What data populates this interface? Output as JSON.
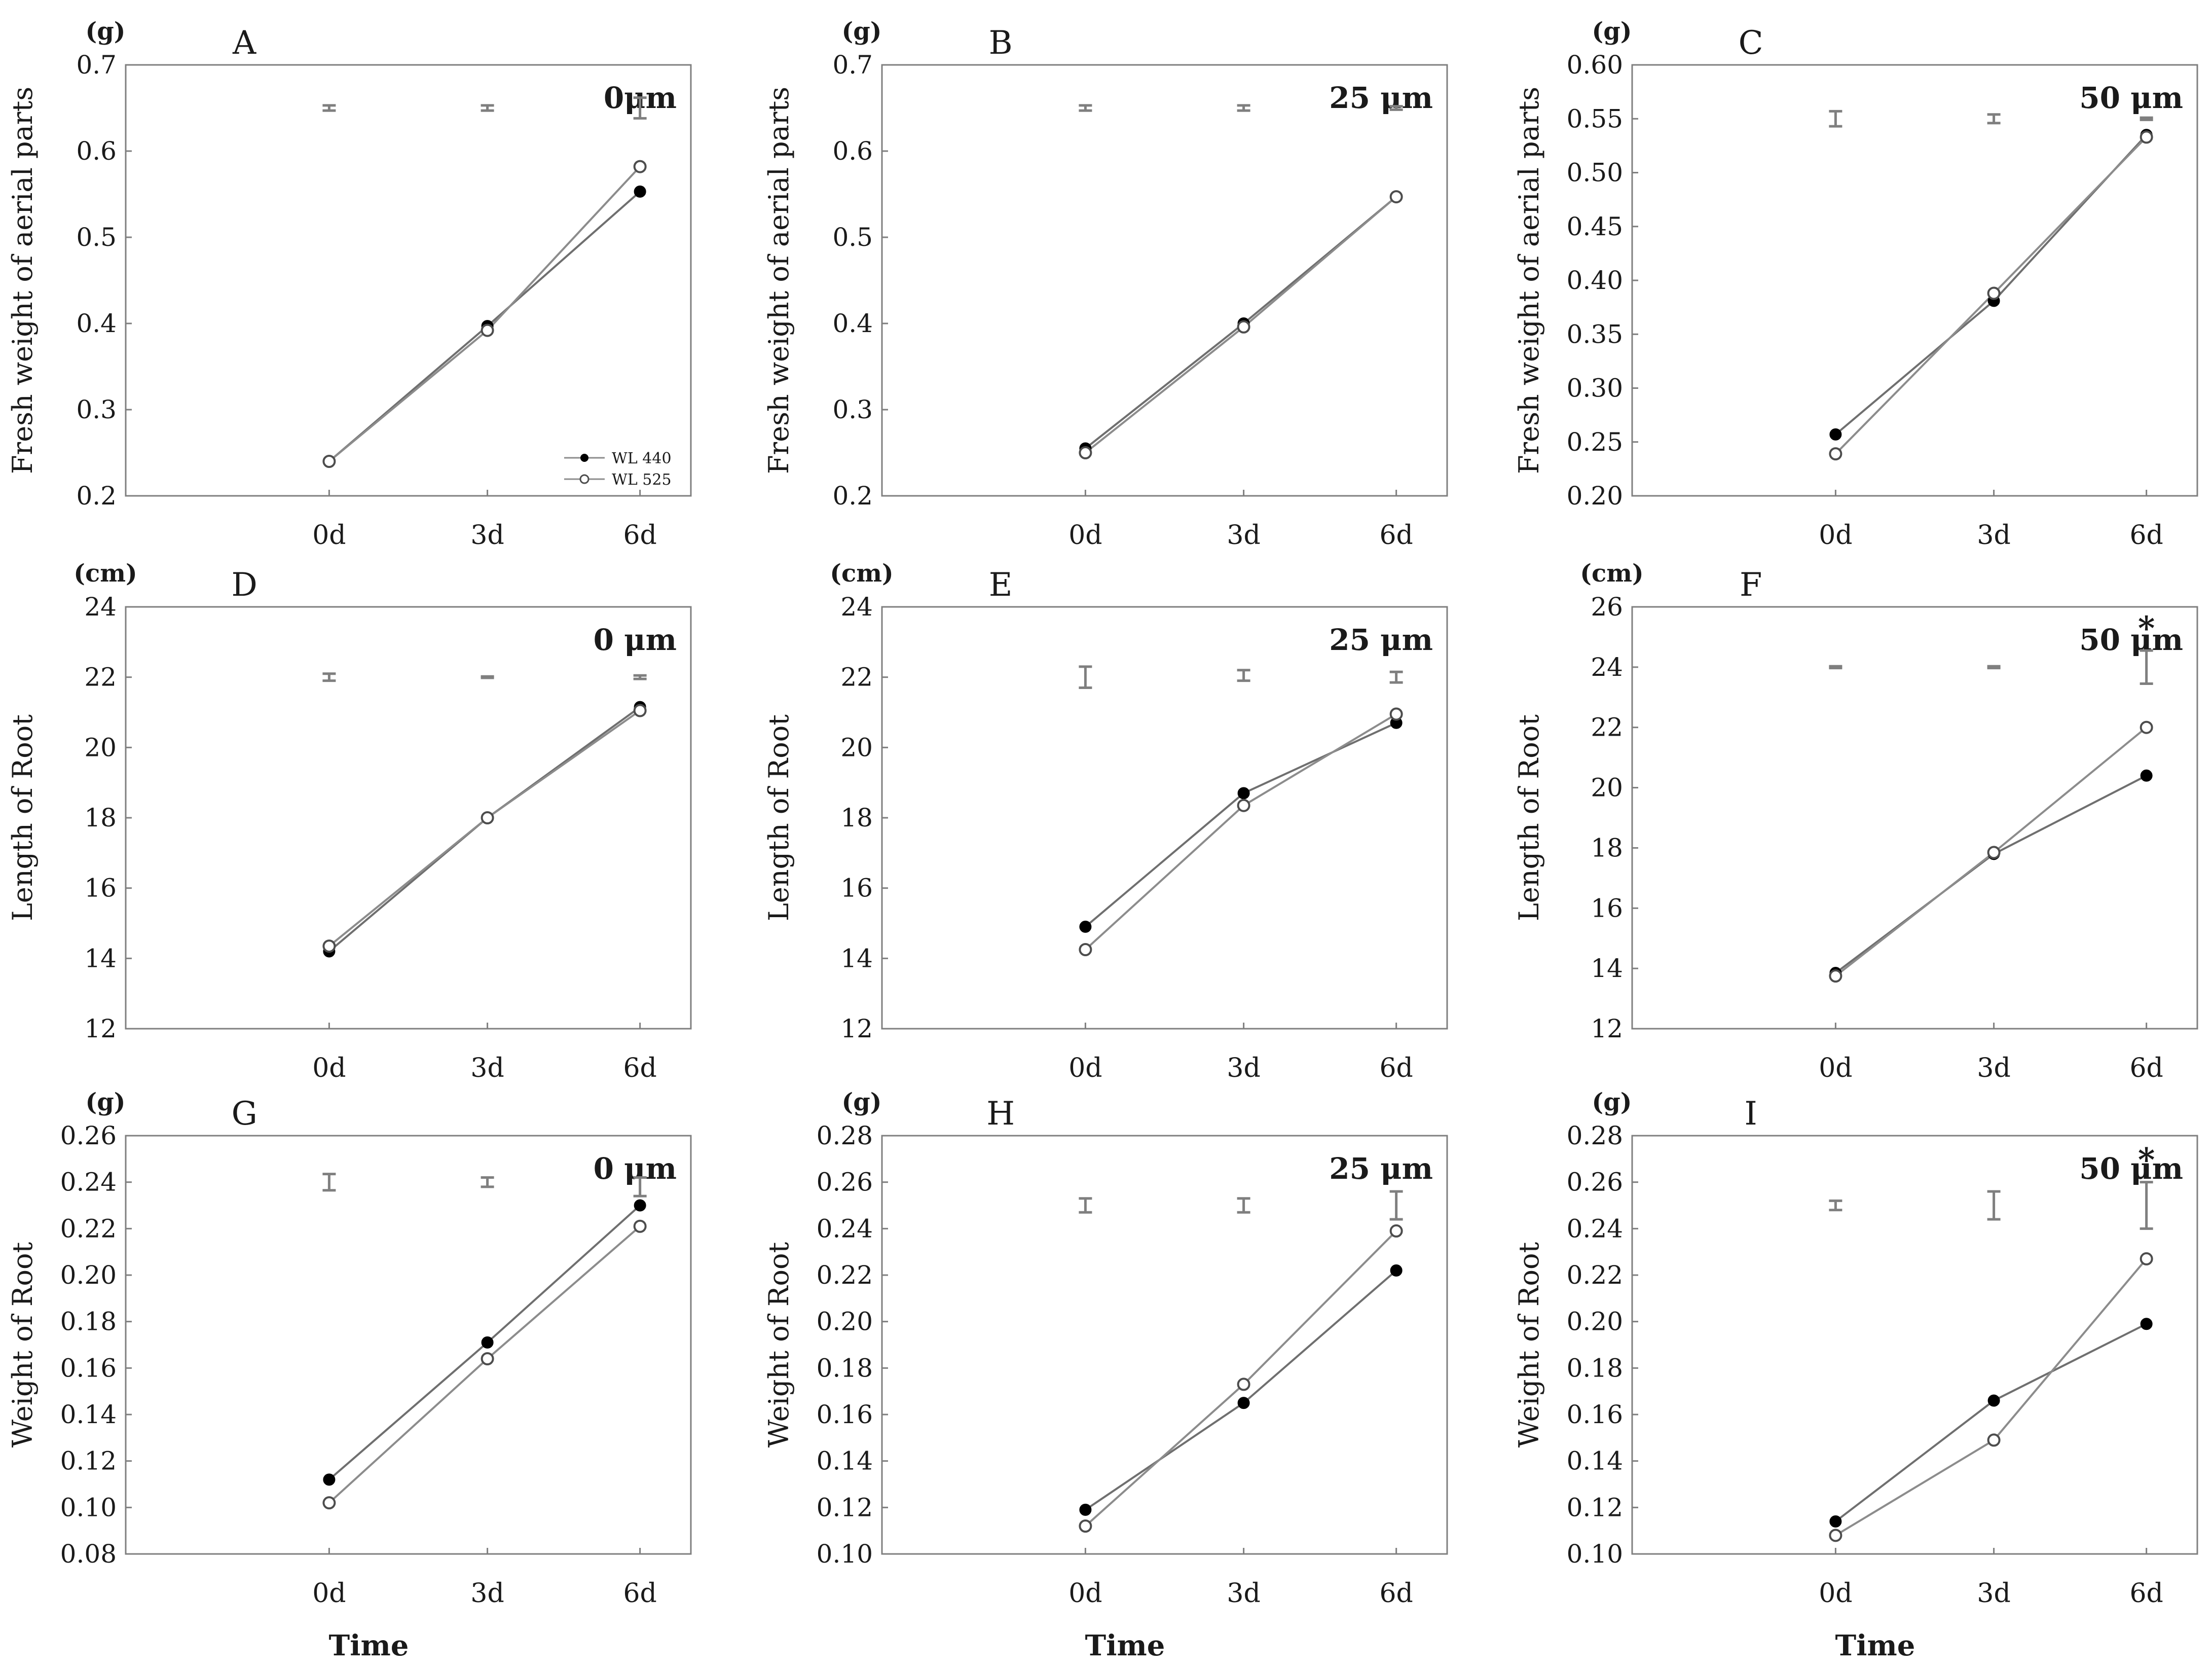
{
  "figure": {
    "time_label": "Time",
    "legend": [
      {
        "name": "WL 440",
        "marker": "filled"
      },
      {
        "name": "WL 525",
        "marker": "open"
      }
    ]
  },
  "colors": {
    "axis": "#7f7f7f",
    "line": "#8c8c8c",
    "filled_marker": "#000000",
    "open_marker_stroke": "#4d4d4d",
    "text": "#1a1a1a"
  },
  "chart_data": [
    {
      "panel": "A",
      "type": "line",
      "unit": "(g)",
      "title": "A",
      "label": "0μm",
      "ylabel": "Fresh weight of aerial parts",
      "xlabel": "",
      "categories": [
        "0d",
        "3d",
        "6d"
      ],
      "ylim": [
        0.2,
        0.7
      ],
      "yticks": [
        0.2,
        0.3,
        0.4,
        0.5,
        0.6,
        0.7
      ],
      "ytick_labels": [
        "0.2",
        "0.3",
        "0.4",
        "0.5",
        "0.6",
        "0.7"
      ],
      "series": [
        {
          "name": "WL 440",
          "values": [
            0.24,
            0.397,
            0.553
          ]
        },
        {
          "name": "WL 525",
          "values": [
            0.24,
            0.392,
            0.582
          ]
        }
      ],
      "error_bars": [
        {
          "center": 0.65,
          "half": 0.003
        },
        {
          "center": 0.65,
          "half": 0.003
        },
        {
          "center": 0.65,
          "half": 0.012
        }
      ],
      "significance": [
        "",
        "",
        ""
      ],
      "show_legend": true
    },
    {
      "panel": "B",
      "type": "line",
      "unit": "(g)",
      "title": "B",
      "label": "25 μm",
      "ylabel": "Fresh weight of aerial parts",
      "xlabel": "",
      "categories": [
        "0d",
        "3d",
        "6d"
      ],
      "ylim": [
        0.2,
        0.7
      ],
      "yticks": [
        0.2,
        0.3,
        0.4,
        0.5,
        0.6,
        0.7
      ],
      "ytick_labels": [
        "0.2",
        "0.3",
        "0.4",
        "0.5",
        "0.6",
        "0.7"
      ],
      "series": [
        {
          "name": "WL 440",
          "values": [
            0.255,
            0.4,
            0.547
          ]
        },
        {
          "name": "WL 525",
          "values": [
            0.25,
            0.396,
            0.547
          ]
        }
      ],
      "error_bars": [
        {
          "center": 0.65,
          "half": 0.003
        },
        {
          "center": 0.65,
          "half": 0.003
        },
        {
          "center": 0.65,
          "half": 0.002
        }
      ],
      "significance": [
        "",
        "",
        ""
      ],
      "show_legend": false
    },
    {
      "panel": "C",
      "type": "line",
      "unit": "(g)",
      "title": "C",
      "label": "50 μm",
      "ylabel": "Fresh weight of aerial parts",
      "xlabel": "",
      "categories": [
        "0d",
        "3d",
        "6d"
      ],
      "ylim": [
        0.2,
        0.6
      ],
      "yticks": [
        0.2,
        0.25,
        0.3,
        0.35,
        0.4,
        0.45,
        0.5,
        0.55,
        0.6
      ],
      "ytick_labels": [
        "0.20",
        "0.25",
        "0.30",
        "0.35",
        "0.40",
        "0.45",
        "0.50",
        "0.55",
        "0.60"
      ],
      "series": [
        {
          "name": "WL 440",
          "values": [
            0.257,
            0.381,
            0.535
          ]
        },
        {
          "name": "WL 525",
          "values": [
            0.239,
            0.388,
            0.533
          ]
        }
      ],
      "error_bars": [
        {
          "center": 0.55,
          "half": 0.007
        },
        {
          "center": 0.55,
          "half": 0.004
        },
        {
          "center": 0.55,
          "half": 0.001
        }
      ],
      "significance": [
        "",
        "",
        ""
      ],
      "show_legend": false
    },
    {
      "panel": "D",
      "type": "line",
      "unit": "(cm)",
      "title": "D",
      "label": "0 μm",
      "ylabel": "Length of Root",
      "xlabel": "",
      "categories": [
        "0d",
        "3d",
        "6d"
      ],
      "ylim": [
        12,
        24
      ],
      "yticks": [
        12,
        14,
        16,
        18,
        20,
        22,
        24
      ],
      "ytick_labels": [
        "12",
        "14",
        "16",
        "18",
        "20",
        "22",
        "24"
      ],
      "series": [
        {
          "name": "WL 440",
          "values": [
            14.2,
            18.0,
            21.15
          ]
        },
        {
          "name": "WL 525",
          "values": [
            14.35,
            18.0,
            21.05
          ]
        }
      ],
      "error_bars": [
        {
          "center": 22.0,
          "half": 0.1
        },
        {
          "center": 22.0,
          "half": 0.02
        },
        {
          "center": 22.0,
          "half": 0.05
        }
      ],
      "significance": [
        "",
        "",
        ""
      ],
      "show_legend": false
    },
    {
      "panel": "E",
      "type": "line",
      "unit": "(cm)",
      "title": "E",
      "label": "25 μm",
      "ylabel": "Length of Root",
      "xlabel": "",
      "categories": [
        "0d",
        "3d",
        "6d"
      ],
      "ylim": [
        12,
        24
      ],
      "yticks": [
        12,
        14,
        16,
        18,
        20,
        22,
        24
      ],
      "ytick_labels": [
        "12",
        "14",
        "16",
        "18",
        "20",
        "22",
        "24"
      ],
      "series": [
        {
          "name": "WL 440",
          "values": [
            14.9,
            18.7,
            20.7
          ]
        },
        {
          "name": "WL 525",
          "values": [
            14.25,
            18.35,
            20.95
          ]
        }
      ],
      "error_bars": [
        {
          "center": 22.0,
          "half": 0.3
        },
        {
          "center": 22.05,
          "half": 0.15
        },
        {
          "center": 22.0,
          "half": 0.15
        }
      ],
      "significance": [
        "",
        "",
        ""
      ],
      "show_legend": false
    },
    {
      "panel": "F",
      "type": "line",
      "unit": "(cm)",
      "title": "F",
      "label": "50 μm",
      "ylabel": "Length of  Root",
      "xlabel": "",
      "categories": [
        "0d",
        "3d",
        "6d"
      ],
      "ylim": [
        12,
        26
      ],
      "yticks": [
        12,
        14,
        16,
        18,
        20,
        22,
        24,
        26
      ],
      "ytick_labels": [
        "12",
        "14",
        "16",
        "18",
        "20",
        "22",
        "24",
        "26"
      ],
      "series": [
        {
          "name": "WL 440",
          "values": [
            13.85,
            17.8,
            20.4
          ]
        },
        {
          "name": "WL 525",
          "values": [
            13.75,
            17.85,
            22.0
          ]
        }
      ],
      "error_bars": [
        {
          "center": 24.0,
          "half": 0.03
        },
        {
          "center": 24.0,
          "half": 0.03
        },
        {
          "center": 24.0,
          "half": 0.55
        }
      ],
      "significance": [
        "",
        "",
        "*"
      ],
      "show_legend": false
    },
    {
      "panel": "G",
      "type": "line",
      "unit": "(g)",
      "title": "G",
      "label": "0 μm",
      "ylabel": "Weight  of  Root",
      "xlabel": "Time",
      "categories": [
        "0d",
        "3d",
        "6d"
      ],
      "ylim": [
        0.08,
        0.26
      ],
      "yticks": [
        0.08,
        0.1,
        0.12,
        0.14,
        0.16,
        0.18,
        0.2,
        0.22,
        0.24,
        0.26
      ],
      "ytick_labels": [
        "0.08",
        "0.10",
        "0.12",
        "0.14",
        "0.16",
        "0.18",
        "0.20",
        "0.22",
        "0.24",
        "0.26"
      ],
      "series": [
        {
          "name": "WL 440",
          "values": [
            0.112,
            0.171,
            0.23
          ]
        },
        {
          "name": "WL 525",
          "values": [
            0.102,
            0.164,
            0.221
          ]
        }
      ],
      "error_bars": [
        {
          "center": 0.24,
          "half": 0.0035
        },
        {
          "center": 0.24,
          "half": 0.002
        },
        {
          "center": 0.238,
          "half": 0.004
        }
      ],
      "significance": [
        "",
        "",
        ""
      ],
      "show_legend": false
    },
    {
      "panel": "H",
      "type": "line",
      "unit": "(g)",
      "title": "H",
      "label": "25 μm",
      "ylabel": "Weight  of  Root",
      "xlabel": "Time",
      "categories": [
        "0d",
        "3d",
        "6d"
      ],
      "ylim": [
        0.1,
        0.28
      ],
      "yticks": [
        0.1,
        0.12,
        0.14,
        0.16,
        0.18,
        0.2,
        0.22,
        0.24,
        0.26,
        0.28
      ],
      "ytick_labels": [
        "0.10",
        "0.12",
        "0.14",
        "0.16",
        "0.18",
        "0.20",
        "0.22",
        "0.24",
        "0.26",
        "0.28"
      ],
      "series": [
        {
          "name": "WL 440",
          "values": [
            0.119,
            0.165,
            0.222
          ]
        },
        {
          "name": "WL 525",
          "values": [
            0.112,
            0.173,
            0.239
          ]
        }
      ],
      "error_bars": [
        {
          "center": 0.25,
          "half": 0.003
        },
        {
          "center": 0.25,
          "half": 0.003
        },
        {
          "center": 0.25,
          "half": 0.006
        }
      ],
      "significance": [
        "",
        "",
        ""
      ],
      "show_legend": false
    },
    {
      "panel": "I",
      "type": "line",
      "unit": "(g)",
      "title": "I",
      "label": "50 μm",
      "ylabel": "Weight  of  Root",
      "xlabel": "Time",
      "categories": [
        "0d",
        "3d",
        "6d"
      ],
      "ylim": [
        0.1,
        0.28
      ],
      "yticks": [
        0.1,
        0.12,
        0.14,
        0.16,
        0.18,
        0.2,
        0.22,
        0.24,
        0.26,
        0.28
      ],
      "ytick_labels": [
        "0.10",
        "0.12",
        "0.14",
        "0.16",
        "0.18",
        "0.20",
        "0.22",
        "0.24",
        "0.26",
        "0.28"
      ],
      "series": [
        {
          "name": "WL 440",
          "values": [
            0.114,
            0.166,
            0.199
          ]
        },
        {
          "name": "WL 525",
          "values": [
            0.108,
            0.149,
            0.227
          ]
        }
      ],
      "error_bars": [
        {
          "center": 0.25,
          "half": 0.002
        },
        {
          "center": 0.25,
          "half": 0.006
        },
        {
          "center": 0.25,
          "half": 0.01
        }
      ],
      "significance": [
        "",
        "",
        "*"
      ],
      "show_legend": false
    }
  ]
}
